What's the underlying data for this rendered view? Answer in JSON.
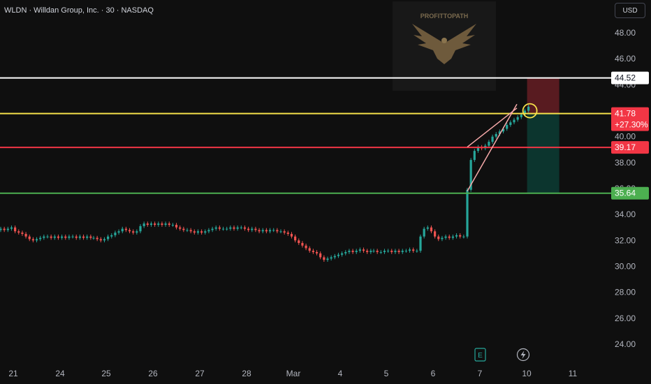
{
  "header": {
    "title": "WLDN · Willdan Group, Inc. · 30 · NASDAQ",
    "currency": "USD"
  },
  "watermark": {
    "brand": "PROFITTOPATH"
  },
  "colors": {
    "background": "#0f0f0f",
    "up": "#26a69a",
    "down": "#ef5350",
    "white_line": "#ffffff",
    "yellow_line": "#f5e14a",
    "red_line": "#f23645",
    "green_line": "#4caf50",
    "wedge": "#f6a9a9"
  },
  "chart_data": {
    "type": "candlestick",
    "y_axis": {
      "ticks": [
        "48.00",
        "46.00",
        "44.00",
        "42.00",
        "40.00",
        "38.00",
        "36.00",
        "34.00",
        "32.00",
        "30.00",
        "28.00",
        "26.00",
        "24.00"
      ],
      "tick_values": [
        48,
        46,
        44,
        42,
        40,
        38,
        36,
        34,
        32,
        30,
        28,
        26,
        24
      ],
      "ylim": [
        23.2,
        49.5
      ]
    },
    "x_axis": {
      "ticks": [
        "21",
        "24",
        "25",
        "26",
        "27",
        "28",
        "Mar",
        "4",
        "5",
        "6",
        "7",
        "10",
        "11"
      ]
    },
    "horizontal_lines": [
      {
        "price": 44.52,
        "label": "44.52",
        "color": "#ffffff"
      },
      {
        "price": 41.78,
        "label": "41.78",
        "sublabel": "+27.30%",
        "color": "#f5e14a"
      },
      {
        "price": 39.17,
        "label": "39.17",
        "color": "#f23645"
      },
      {
        "price": 35.64,
        "label": "35.64",
        "color": "#4caf50"
      }
    ],
    "candles_per_session": 13,
    "series": [
      {
        "name": "WLDN",
        "close": [
          32.9,
          32.8,
          32.9,
          33.0,
          32.7,
          32.6,
          32.5,
          32.3,
          32.1,
          32.0,
          32.1,
          32.2,
          32.3,
          32.3,
          32.2,
          32.3,
          32.2,
          32.3,
          32.2,
          32.3,
          32.3,
          32.2,
          32.3,
          32.2,
          32.3,
          32.2,
          32.2,
          32.1,
          32.0,
          32.1,
          32.3,
          32.4,
          32.6,
          32.7,
          32.9,
          32.8,
          32.7,
          32.6,
          32.7,
          33.1,
          33.3,
          33.2,
          33.3,
          33.2,
          33.3,
          33.2,
          33.3,
          33.2,
          33.2,
          33.0,
          32.9,
          32.8,
          32.8,
          32.7,
          32.6,
          32.7,
          32.6,
          32.7,
          32.8,
          32.9,
          33.0,
          32.9,
          32.9,
          32.9,
          33.0,
          32.9,
          33.0,
          33.0,
          32.9,
          32.8,
          32.9,
          32.8,
          32.7,
          32.8,
          32.7,
          32.8,
          32.8,
          32.7,
          32.7,
          32.6,
          32.5,
          32.3,
          32.0,
          31.8,
          31.6,
          31.4,
          31.2,
          31.1,
          31.0,
          30.7,
          30.5,
          30.6,
          30.7,
          30.8,
          30.9,
          31.0,
          31.1,
          31.2,
          31.1,
          31.2,
          31.3,
          31.2,
          31.1,
          31.2,
          31.2,
          31.1,
          31.1,
          31.2,
          31.2,
          31.1,
          31.2,
          31.1,
          31.2,
          31.2,
          31.3,
          31.2,
          31.2,
          32.3,
          32.9,
          33.0,
          32.7,
          32.3,
          32.1,
          32.2,
          32.3,
          32.2,
          32.3,
          32.4,
          32.3,
          32.3,
          35.9,
          38.2,
          38.9,
          39.2,
          39.1,
          39.3,
          39.6,
          40.0,
          40.2,
          40.4,
          40.6,
          40.9,
          41.1,
          41.3,
          41.5,
          41.7,
          42.0,
          42.3
        ]
      }
    ],
    "wedge": {
      "upper": [
        [
          0,
          39.2
        ],
        [
          13,
          42.2
        ]
      ],
      "lower": [
        [
          0,
          35.8
        ],
        [
          13,
          42.5
        ]
      ]
    },
    "trade_box": {
      "entry": 41.78,
      "stop": 44.52,
      "target": 35.64
    }
  }
}
